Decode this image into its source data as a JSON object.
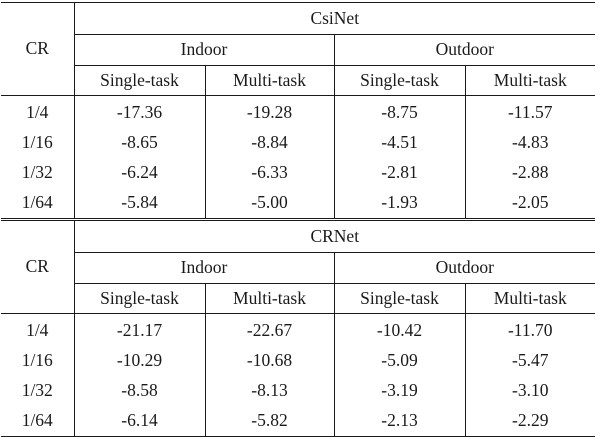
{
  "tables": [
    {
      "model": "CsiNet",
      "row_header": "CR",
      "groups": [
        "Indoor",
        "Outdoor"
      ],
      "subcolumns": [
        "Single-task",
        "Multi-task",
        "Single-task",
        "Multi-task"
      ],
      "rows": [
        {
          "cr": "1/4",
          "values": [
            "-17.36",
            "-19.28",
            "-8.75",
            "-11.57"
          ]
        },
        {
          "cr": "1/16",
          "values": [
            "-8.65",
            "-8.84",
            "-4.51",
            "-4.83"
          ]
        },
        {
          "cr": "1/32",
          "values": [
            "-6.24",
            "-6.33",
            "-2.81",
            "-2.88"
          ]
        },
        {
          "cr": "1/64",
          "values": [
            "-5.84",
            "-5.00",
            "-1.93",
            "-2.05"
          ]
        }
      ]
    },
    {
      "model": "CRNet",
      "row_header": "CR",
      "groups": [
        "Indoor",
        "Outdoor"
      ],
      "subcolumns": [
        "Single-task",
        "Multi-task",
        "Single-task",
        "Multi-task"
      ],
      "rows": [
        {
          "cr": "1/4",
          "values": [
            "-21.17",
            "-22.67",
            "-10.42",
            "-11.70"
          ]
        },
        {
          "cr": "1/16",
          "values": [
            "-10.29",
            "-10.68",
            "-5.09",
            "-5.47"
          ]
        },
        {
          "cr": "1/32",
          "values": [
            "-8.58",
            "-8.13",
            "-3.19",
            "-3.10"
          ]
        },
        {
          "cr": "1/64",
          "values": [
            "-6.14",
            "-5.82",
            "-2.13",
            "-2.29"
          ]
        }
      ]
    }
  ]
}
